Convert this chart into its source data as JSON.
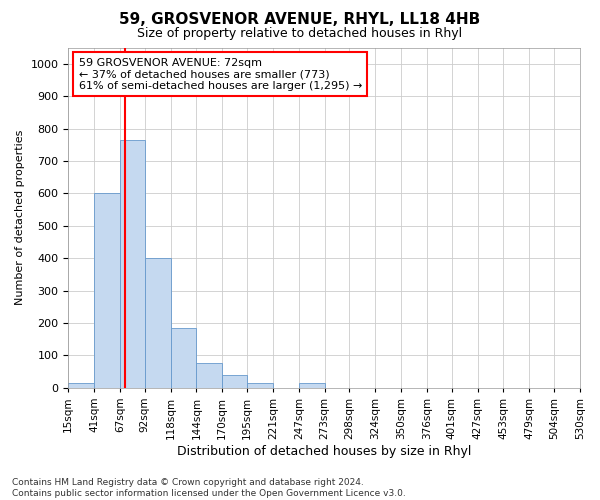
{
  "title": "59, GROSVENOR AVENUE, RHYL, LL18 4HB",
  "subtitle": "Size of property relative to detached houses in Rhyl",
  "xlabel": "Distribution of detached houses by size in Rhyl",
  "ylabel": "Number of detached properties",
  "bar_color": "#c5d9f0",
  "bar_edge_color": "#6699cc",
  "grid_color": "#cccccc",
  "annotation_text": "59 GROSVENOR AVENUE: 72sqm\n← 37% of detached houses are smaller (773)\n61% of semi-detached houses are larger (1,295) →",
  "red_line_x": 72,
  "bin_edges": [
    15,
    41,
    67,
    92,
    118,
    144,
    170,
    195,
    221,
    247,
    273,
    298,
    324,
    350,
    376,
    401,
    427,
    453,
    479,
    504,
    530
  ],
  "bar_heights": [
    15,
    600,
    765,
    400,
    185,
    75,
    40,
    15,
    0,
    15,
    0,
    0,
    0,
    0,
    0,
    0,
    0,
    0,
    0,
    0
  ],
  "ylim": [
    0,
    1050
  ],
  "yticks": [
    0,
    100,
    200,
    300,
    400,
    500,
    600,
    700,
    800,
    900,
    1000
  ],
  "footnote": "Contains HM Land Registry data © Crown copyright and database right 2024.\nContains public sector information licensed under the Open Government Licence v3.0.",
  "background_color": "#ffffff",
  "title_fontsize": 11,
  "subtitle_fontsize": 9,
  "ylabel_fontsize": 8,
  "xlabel_fontsize": 9,
  "ytick_fontsize": 8,
  "xtick_fontsize": 7.5,
  "annot_fontsize": 8,
  "footnote_fontsize": 6.5
}
